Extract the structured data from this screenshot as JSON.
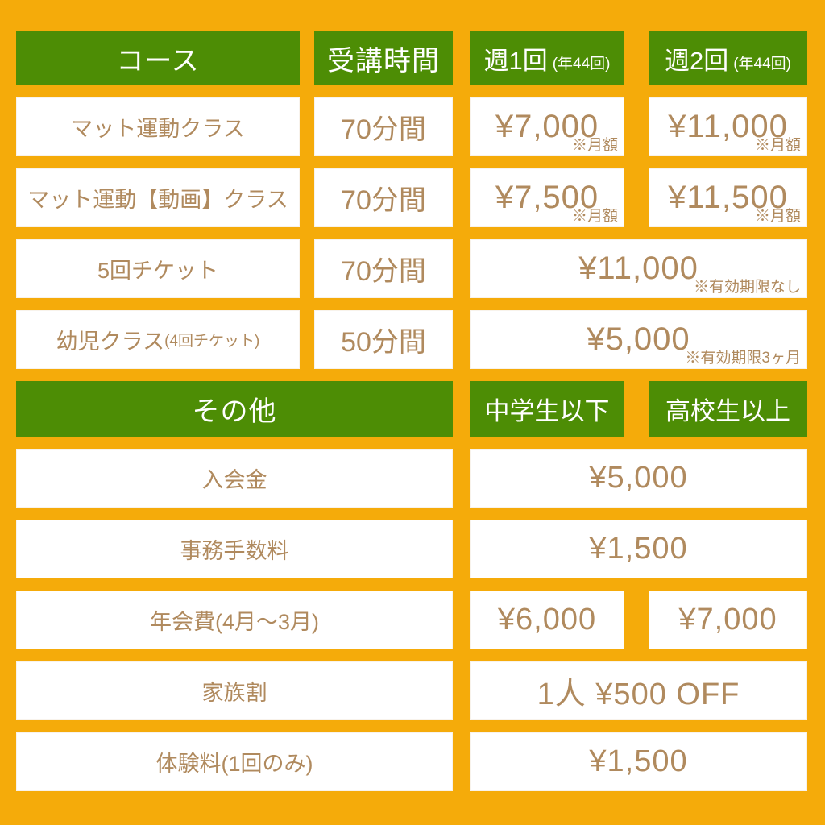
{
  "palette": {
    "background": "#F5AB0A",
    "header_green": "#4D8D05",
    "text_brown": "#B08A5E",
    "cell_white": "#FFFFFF",
    "header_text": "#FFFFFF"
  },
  "table": {
    "headers": {
      "course": "コース",
      "duration": "受講時間",
      "weekly1": "週1回",
      "weekly1_note": "(年44回)",
      "weekly2": "週2回",
      "weekly2_note": "(年44回)"
    },
    "courses": [
      {
        "name": "マット運動クラス",
        "duration": "70分間",
        "price1": "¥7,000",
        "price1_note": "※月額",
        "price2": "¥11,000",
        "price2_note": "※月額"
      },
      {
        "name": "マット運動【動画】クラス",
        "duration": "70分間",
        "price1": "¥7,500",
        "price1_note": "※月額",
        "price2": "¥11,500",
        "price2_note": "※月額"
      },
      {
        "name": "5回チケット",
        "duration": "70分間",
        "price": "¥11,000",
        "price_note": "※有効期限なし"
      },
      {
        "name": "幼児クラス",
        "name_note": "(4回チケット)",
        "duration": "50分間",
        "price": "¥5,000",
        "price_note": "※有効期限3ヶ月"
      }
    ],
    "other_headers": {
      "other": "その他",
      "junior": "中学生以下",
      "senior": "高校生以上"
    },
    "other_rows": [
      {
        "name": "入会金",
        "value": "¥5,000"
      },
      {
        "name": "事務手数料",
        "value": "¥1,500"
      },
      {
        "name": "年会費(4月〜3月)",
        "value1": "¥6,000",
        "value2": "¥7,000"
      },
      {
        "name": "家族割",
        "value": "1人 ¥500 OFF"
      },
      {
        "name": "体験料(1回のみ)",
        "value": "¥1,500"
      }
    ]
  }
}
